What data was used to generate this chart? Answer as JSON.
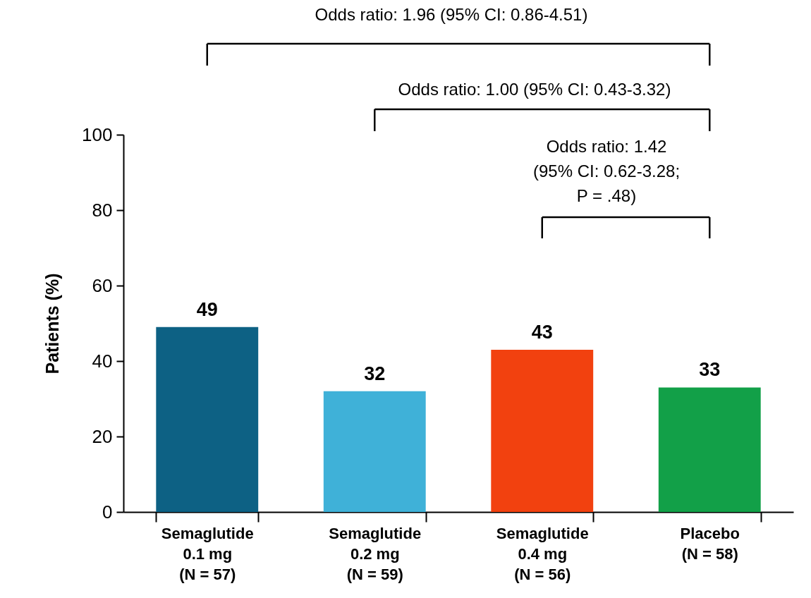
{
  "chart_data": {
    "type": "bar",
    "categories": [
      "Semaglutide\n0.1 mg\n(N = 57)",
      "Semaglutide\n0.2 mg\n(N = 59)",
      "Semaglutide\n0.4 mg\n(N = 56)",
      "Placebo\n(N = 58)"
    ],
    "values": [
      49,
      32,
      43,
      33
    ],
    "colors": [
      "#0d6184",
      "#3fb1d8",
      "#f2410f",
      "#12a048"
    ],
    "ylabel": "Patients (%)",
    "ylim": [
      0,
      100
    ],
    "yticks": [
      0,
      20,
      40,
      60,
      80,
      100
    ],
    "data_labels": true,
    "grid": false,
    "annotations": [
      "Odds ratio: 1.96 (95% CI: 0.86-4.51)",
      "Odds ratio: 1.00 (95% CI: 0.43-3.32)",
      "Odds ratio: 1.42\n(95% CI: 0.62-3.28;\nP = .48)"
    ]
  }
}
